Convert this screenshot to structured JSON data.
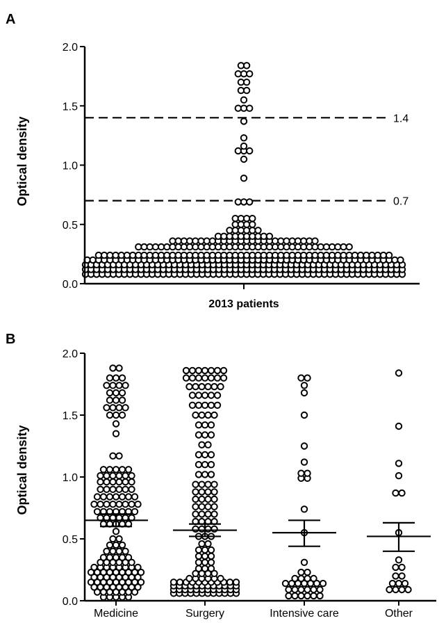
{
  "chart_data": [
    {
      "panel": "A",
      "type": "scatter",
      "ylabel": "Optical density",
      "xlabel": "2013 patients",
      "ylim": [
        0,
        2
      ],
      "yticks": [
        "0.0",
        "0.5",
        "1.0",
        "1.5",
        "2.0"
      ],
      "reference_lines": [
        {
          "value": 1.4,
          "label": "1.4"
        },
        {
          "value": 0.7,
          "label": "0.7"
        }
      ],
      "bands": [
        {
          "y": 0.08,
          "count": 58
        },
        {
          "y": 0.12,
          "count": 58
        },
        {
          "y": 0.16,
          "count": 58
        },
        {
          "y": 0.2,
          "count": 56
        },
        {
          "y": 0.24,
          "count": 52
        },
        {
          "y": 0.31,
          "count": 38
        },
        {
          "y": 0.36,
          "count": 26
        },
        {
          "y": 0.4,
          "count": 10
        },
        {
          "y": 0.45,
          "count": 6
        },
        {
          "y": 0.5,
          "count": 4
        },
        {
          "y": 0.55,
          "count": 4
        },
        {
          "y": 0.69,
          "count": 3
        },
        {
          "y": 0.89,
          "count": 1
        },
        {
          "y": 1.05,
          "count": 1
        },
        {
          "y": 1.12,
          "count": 3
        },
        {
          "y": 1.16,
          "count": 1
        },
        {
          "y": 1.23,
          "count": 1
        },
        {
          "y": 1.37,
          "count": 1
        },
        {
          "y": 1.48,
          "count": 3
        },
        {
          "y": 1.55,
          "count": 1
        },
        {
          "y": 1.63,
          "count": 2
        },
        {
          "y": 1.7,
          "count": 2
        },
        {
          "y": 1.77,
          "count": 3
        },
        {
          "y": 1.84,
          "count": 2
        }
      ]
    },
    {
      "panel": "B",
      "type": "scatter",
      "ylabel": "Optical density",
      "ylim": [
        0,
        2
      ],
      "yticks": [
        "0.0",
        "0.5",
        "1.0",
        "1.5",
        "2.0"
      ],
      "categories": [
        "Medicine",
        "Surgery",
        "Intensive care",
        "Other"
      ],
      "series": [
        {
          "category": "Medicine",
          "mean": 0.65,
          "sem_low": 0.6,
          "sem_high": 0.7,
          "bands": [
            {
              "y": 0.03,
              "count": 5
            },
            {
              "y": 0.07,
              "count": 7
            },
            {
              "y": 0.11,
              "count": 8
            },
            {
              "y": 0.15,
              "count": 9
            },
            {
              "y": 0.19,
              "count": 8
            },
            {
              "y": 0.23,
              "count": 9
            },
            {
              "y": 0.27,
              "count": 8
            },
            {
              "y": 0.31,
              "count": 6
            },
            {
              "y": 0.35,
              "count": 5
            },
            {
              "y": 0.4,
              "count": 4
            },
            {
              "y": 0.45,
              "count": 3
            },
            {
              "y": 0.5,
              "count": 2
            },
            {
              "y": 0.56,
              "count": 1
            },
            {
              "y": 0.62,
              "count": 5
            },
            {
              "y": 0.67,
              "count": 6
            },
            {
              "y": 0.72,
              "count": 7
            },
            {
              "y": 0.78,
              "count": 8
            },
            {
              "y": 0.84,
              "count": 7
            },
            {
              "y": 0.9,
              "count": 6
            },
            {
              "y": 0.96,
              "count": 6
            },
            {
              "y": 1.01,
              "count": 6
            },
            {
              "y": 1.06,
              "count": 5
            },
            {
              "y": 1.17,
              "count": 2
            },
            {
              "y": 1.35,
              "count": 1
            },
            {
              "y": 1.43,
              "count": 1
            },
            {
              "y": 1.5,
              "count": 3
            },
            {
              "y": 1.56,
              "count": 4
            },
            {
              "y": 1.62,
              "count": 3
            },
            {
              "y": 1.68,
              "count": 3
            },
            {
              "y": 1.74,
              "count": 4
            },
            {
              "y": 1.8,
              "count": 3
            },
            {
              "y": 1.88,
              "count": 2
            }
          ]
        },
        {
          "category": "Surgery",
          "mean": 0.57,
          "sem_low": 0.52,
          "sem_high": 0.62,
          "bands": [
            {
              "y": 0.06,
              "count": 12
            },
            {
              "y": 0.09,
              "count": 12
            },
            {
              "y": 0.12,
              "count": 12
            },
            {
              "y": 0.15,
              "count": 11
            },
            {
              "y": 0.18,
              "count": 6
            },
            {
              "y": 0.22,
              "count": 4
            },
            {
              "y": 0.26,
              "count": 3
            },
            {
              "y": 0.31,
              "count": 3
            },
            {
              "y": 0.36,
              "count": 3
            },
            {
              "y": 0.41,
              "count": 3
            },
            {
              "y": 0.46,
              "count": 2
            },
            {
              "y": 0.52,
              "count": 3
            },
            {
              "y": 0.58,
              "count": 4
            },
            {
              "y": 0.64,
              "count": 4
            },
            {
              "y": 0.7,
              "count": 4
            },
            {
              "y": 0.76,
              "count": 4
            },
            {
              "y": 0.82,
              "count": 4
            },
            {
              "y": 0.88,
              "count": 4
            },
            {
              "y": 0.94,
              "count": 4
            },
            {
              "y": 1.02,
              "count": 3
            },
            {
              "y": 1.1,
              "count": 3
            },
            {
              "y": 1.18,
              "count": 3
            },
            {
              "y": 1.26,
              "count": 2
            },
            {
              "y": 1.34,
              "count": 3
            },
            {
              "y": 1.42,
              "count": 3
            },
            {
              "y": 1.5,
              "count": 4
            },
            {
              "y": 1.58,
              "count": 5
            },
            {
              "y": 1.66,
              "count": 5
            },
            {
              "y": 1.73,
              "count": 6
            },
            {
              "y": 1.8,
              "count": 7
            },
            {
              "y": 1.86,
              "count": 7
            }
          ]
        },
        {
          "category": "Intensive care",
          "mean": 0.55,
          "sem_low": 0.44,
          "sem_high": 0.65,
          "bands": [
            {
              "y": 0.04,
              "count": 6
            },
            {
              "y": 0.09,
              "count": 6
            },
            {
              "y": 0.14,
              "count": 7
            },
            {
              "y": 0.18,
              "count": 4
            },
            {
              "y": 0.23,
              "count": 2
            },
            {
              "y": 0.31,
              "count": 1
            },
            {
              "y": 0.55,
              "count": 1
            },
            {
              "y": 0.74,
              "count": 1
            },
            {
              "y": 0.99,
              "count": 2
            },
            {
              "y": 1.03,
              "count": 2
            },
            {
              "y": 1.12,
              "count": 1
            },
            {
              "y": 1.25,
              "count": 1
            },
            {
              "y": 1.5,
              "count": 1
            },
            {
              "y": 1.68,
              "count": 1
            },
            {
              "y": 1.74,
              "count": 1
            },
            {
              "y": 1.8,
              "count": 2
            }
          ]
        },
        {
          "category": "Other",
          "mean": 0.52,
          "sem_low": 0.4,
          "sem_high": 0.63,
          "bands": [
            {
              "y": 0.09,
              "count": 4
            },
            {
              "y": 0.14,
              "count": 3
            },
            {
              "y": 0.2,
              "count": 2
            },
            {
              "y": 0.27,
              "count": 2
            },
            {
              "y": 0.33,
              "count": 1
            },
            {
              "y": 0.55,
              "count": 1
            },
            {
              "y": 0.87,
              "count": 2
            },
            {
              "y": 1.01,
              "count": 1
            },
            {
              "y": 1.11,
              "count": 1
            },
            {
              "y": 1.41,
              "count": 1
            },
            {
              "y": 1.84,
              "count": 1
            }
          ]
        }
      ]
    }
  ]
}
